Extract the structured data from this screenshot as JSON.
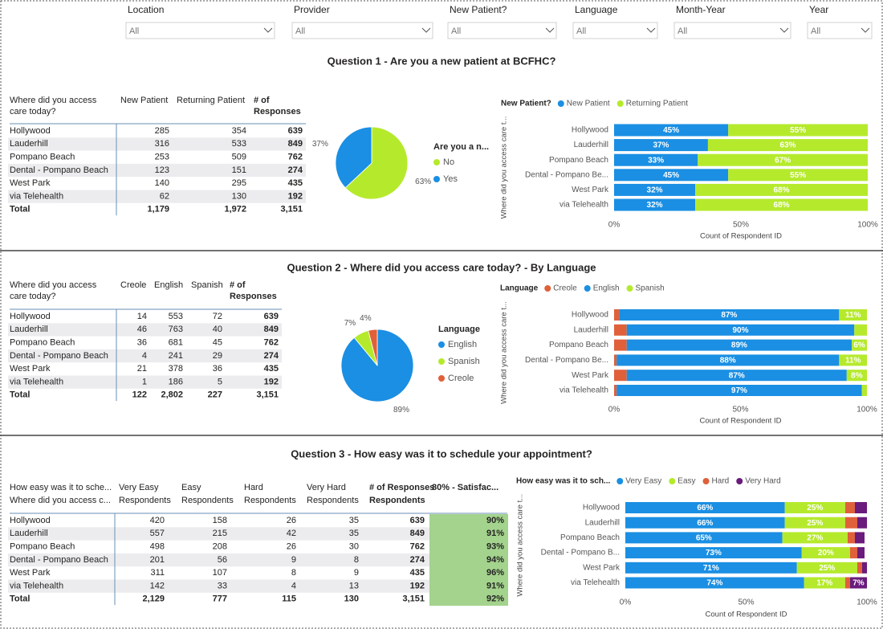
{
  "filters": [
    {
      "label": "Location",
      "value": "All"
    },
    {
      "label": "Provider",
      "value": "All"
    },
    {
      "label": "New Patient?",
      "value": "All"
    },
    {
      "label": "Language",
      "value": "All"
    },
    {
      "label": "Month-Year",
      "value": "All"
    },
    {
      "label": "Year",
      "value": "All"
    }
  ],
  "questions": [
    {
      "title": "Question 1 - Are you a new patient at BCFHC?",
      "table": {
        "headers": [
          "Where did you access care today?",
          "New Patient",
          "Returning Patient",
          "# of Responses"
        ],
        "rows": [
          [
            "Hollywood",
            285,
            354,
            639
          ],
          [
            "Lauderhill",
            316,
            533,
            849
          ],
          [
            "Pompano Beach",
            253,
            509,
            762
          ],
          [
            "Dental - Pompano Beach",
            123,
            151,
            274
          ],
          [
            "West Park",
            140,
            295,
            435
          ],
          [
            "via Telehealth",
            62,
            130,
            192
          ]
        ],
        "total": [
          "Total",
          "1,179",
          "1,972",
          "3,151"
        ]
      },
      "pie": {
        "legend_title": "Are you a n...",
        "slices": [
          {
            "name": "No",
            "color": "#b5ea2c",
            "value": 63,
            "value_label": "63%"
          },
          {
            "name": "Yes",
            "color": "#1a8fe3",
            "value": 37,
            "value_label": "37%"
          }
        ]
      },
      "bar": {
        "type": "bar",
        "legend_title": "New Patient?",
        "y_label": "Where did you access care t...",
        "x_label": "Count of Respondent ID",
        "categories": [
          "Hollywood",
          "Lauderhill",
          "Pompano Beach",
          "Dental - Pompano Be...",
          "West Park",
          "via Telehealth"
        ],
        "series": [
          {
            "name": "New Patient",
            "color": "#1a8fe3",
            "values": [
              45,
              37,
              33,
              45,
              32,
              32
            ],
            "value_labels": [
              "45%",
              "37%",
              "33%",
              "45%",
              "32%",
              "32%"
            ]
          },
          {
            "name": "Returning Patient",
            "color": "#b5ea2c",
            "values": [
              55,
              63,
              67,
              55,
              68,
              68
            ],
            "value_labels": [
              "55%",
              "63%",
              "67%",
              "55%",
              "68%",
              "68%"
            ]
          }
        ],
        "xlim": [
          0,
          100
        ],
        "xticks": [
          {
            "value": 0,
            "label": "0%"
          },
          {
            "value": 50,
            "label": "50%"
          },
          {
            "value": 100,
            "label": "100%"
          }
        ]
      }
    },
    {
      "title": "Question 2 - Where did you access care today? - By Language",
      "table": {
        "headers": [
          "Where did you access care today?",
          "Creole",
          "English",
          "Spanish",
          "# of Responses"
        ],
        "rows": [
          [
            "Hollywood",
            14,
            553,
            72,
            639
          ],
          [
            "Lauderhill",
            46,
            763,
            40,
            849
          ],
          [
            "Pompano Beach",
            36,
            681,
            45,
            762
          ],
          [
            "Dental - Pompano Beach",
            4,
            241,
            29,
            274
          ],
          [
            "West Park",
            21,
            378,
            36,
            435
          ],
          [
            "via Telehealth",
            1,
            186,
            5,
            192
          ]
        ],
        "total": [
          "Total",
          122,
          "2,802",
          227,
          "3,151"
        ]
      },
      "pie": {
        "legend_title": "Language",
        "slices": [
          {
            "name": "English",
            "color": "#1a8fe3",
            "value": 89,
            "value_label": "89%"
          },
          {
            "name": "Spanish",
            "color": "#b5ea2c",
            "value": 7,
            "value_label": "7%"
          },
          {
            "name": "Creole",
            "color": "#e0603a",
            "value": 4,
            "value_label": "4%"
          }
        ]
      },
      "bar": {
        "type": "bar",
        "legend_title": "Language",
        "y_label": "Where did you access care t...",
        "x_label": "Count of Respondent ID",
        "categories": [
          "Hollywood",
          "Lauderhill",
          "Pompano Beach",
          "Dental - Pompano Be...",
          "West Park",
          "via Telehealth"
        ],
        "series": [
          {
            "name": "Creole",
            "color": "#e0603a",
            "values": [
              2,
              5,
              5,
              1,
              5,
              1
            ],
            "value_labels": [
              null,
              null,
              null,
              null,
              null,
              null
            ]
          },
          {
            "name": "English",
            "color": "#1a8fe3",
            "values": [
              87,
              90,
              89,
              88,
              87,
              97
            ],
            "value_labels": [
              "87%",
              "90%",
              "89%",
              "88%",
              "87%",
              "97%"
            ]
          },
          {
            "name": "Spanish",
            "color": "#b5ea2c",
            "values": [
              11,
              5,
              6,
              11,
              8,
              2
            ],
            "value_labels": [
              "11%",
              null,
              "6%",
              "11%",
              "8%",
              null
            ]
          }
        ],
        "xlim": [
          0,
          100
        ],
        "xticks": [
          {
            "value": 0,
            "label": "0%"
          },
          {
            "value": 50,
            "label": "50%"
          },
          {
            "value": 100,
            "label": "100%"
          }
        ]
      }
    },
    {
      "title": "Question 3 - How easy was it to schedule your appointment?",
      "table": {
        "headers": [
          "How easy was it to sche...",
          "Very Easy",
          "Easy",
          "Hard",
          "Very Hard",
          "# of Responses",
          "80% - Satisfac..."
        ],
        "subheaders": [
          "Where did you access c...",
          "Respondents",
          "Respondents",
          "Respondents",
          "Respondents",
          "Respondents"
        ],
        "rows": [
          [
            "Hollywood",
            420,
            158,
            26,
            35,
            639,
            "90%"
          ],
          [
            "Lauderhill",
            557,
            215,
            42,
            35,
            849,
            "91%"
          ],
          [
            "Pompano Beach",
            498,
            208,
            26,
            30,
            762,
            "93%"
          ],
          [
            "Dental - Pompano Beach",
            201,
            56,
            9,
            8,
            274,
            "94%"
          ],
          [
            "West Park",
            311,
            107,
            8,
            9,
            435,
            "96%"
          ],
          [
            "via Telehealth",
            142,
            33,
            4,
            13,
            192,
            "91%"
          ]
        ],
        "total": [
          "Total",
          "2,129",
          777,
          115,
          130,
          "3,151",
          "92%"
        ]
      },
      "bar": {
        "type": "bar",
        "legend_title": "How easy was it to sch...",
        "y_label": "Where did you access care t...",
        "x_label": "Count of Respondent ID",
        "categories": [
          "Hollywood",
          "Lauderhill",
          "Pompano Beach",
          "Dental - Pompano B...",
          "West Park",
          "via Telehealth"
        ],
        "series": [
          {
            "name": "Very Easy",
            "color": "#1a8fe3",
            "values": [
              66,
              66,
              65,
              73,
              71,
              74
            ],
            "value_labels": [
              "66%",
              "66%",
              "65%",
              "73%",
              "71%",
              "74%"
            ]
          },
          {
            "name": "Easy",
            "color": "#b5ea2c",
            "values": [
              25,
              25,
              27,
              20,
              25,
              17
            ],
            "value_labels": [
              "25%",
              "25%",
              "27%",
              "20%",
              "25%",
              "17%"
            ]
          },
          {
            "name": "Hard",
            "color": "#e0603a",
            "values": [
              4,
              5,
              3,
              3,
              2,
              2
            ],
            "value_labels": [
              null,
              null,
              null,
              null,
              null,
              null
            ]
          },
          {
            "name": "Very Hard",
            "color": "#6a1b7c",
            "values": [
              5,
              4,
              4,
              3,
              2,
              7
            ],
            "value_labels": [
              null,
              null,
              null,
              null,
              null,
              "7%"
            ]
          }
        ],
        "xlim": [
          0,
          100
        ],
        "xticks": [
          {
            "value": 0,
            "label": "0%"
          },
          {
            "value": 50,
            "label": "50%"
          },
          {
            "value": 100,
            "label": "100%"
          }
        ]
      }
    }
  ]
}
